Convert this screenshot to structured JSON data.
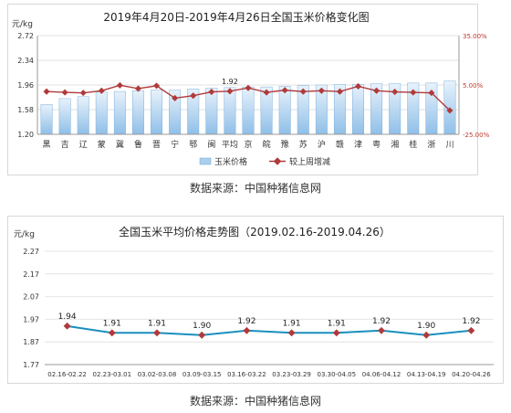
{
  "chart_data": [
    {
      "type": "bar",
      "title": "2019年4月20日-2019年4月26日全国玉米价格变化图",
      "ylabel": "元/kg",
      "categories": [
        "黑",
        "吉",
        "辽",
        "蒙",
        "冀",
        "鲁",
        "晋",
        "宁",
        "鄂",
        "闽",
        "平均",
        "京",
        "皖",
        "豫",
        "苏",
        "沪",
        "赣",
        "津",
        "粤",
        "湘",
        "桂",
        "浙",
        "川"
      ],
      "ylim": [
        1.2,
        2.72
      ],
      "yticks": [
        "1.20",
        "1.58",
        "1.96",
        "2.34",
        "2.72"
      ],
      "y2ticks": [
        "35.00%",
        "5.00%",
        "-25.00%"
      ],
      "y2lim": [
        -25,
        35
      ],
      "series": [
        {
          "name": "玉米价格",
          "values": [
            1.66,
            1.75,
            1.78,
            1.85,
            1.86,
            1.87,
            1.88,
            1.88,
            1.9,
            1.91,
            1.92,
            1.93,
            1.93,
            1.94,
            1.95,
            1.96,
            1.97,
            1.97,
            1.98,
            1.98,
            1.99,
            1.99,
            2.02
          ]
        },
        {
          "name": "较上周增减",
          "axis": "right",
          "values": [
            1.0,
            0.5,
            0.2,
            1.5,
            4.8,
            2.8,
            4.5,
            -3.0,
            -1.5,
            0.8,
            1.2,
            3.2,
            0.5,
            1.8,
            1.0,
            1.5,
            1.0,
            4.2,
            1.5,
            0.8,
            0.5,
            0.2,
            -10.5
          ]
        }
      ],
      "data_labels": [
        {
          "category": "平均",
          "text": "1.92"
        }
      ],
      "legend": [
        "玉米价格",
        "较上周增减"
      ],
      "legend_position": "bottom",
      "colors": {
        "bar": "#a9cfee",
        "line": "#b03a3a"
      }
    },
    {
      "type": "line",
      "title": "全国玉米平均价格走势图（2019.02.16-2019.04.26）",
      "ylabel": "元/kg",
      "categories": [
        "02.16-02.22",
        "02.23-03.01",
        "03.02-03.08",
        "03.09-03.15",
        "03.16-03.22",
        "03.23-03.29",
        "03.30-04.05",
        "04.06-04.12",
        "04.13-04.19",
        "04.20-04.26"
      ],
      "ylim": [
        1.77,
        2.27
      ],
      "yticks": [
        "1.77",
        "1.87",
        "1.97",
        "2.07",
        "2.17",
        "2.27"
      ],
      "series": [
        {
          "name": "",
          "values": [
            1.94,
            1.91,
            1.91,
            1.9,
            1.92,
            1.91,
            1.91,
            1.92,
            1.9,
            1.92
          ],
          "labels": [
            "1.94",
            "1.91",
            "1.91",
            "1.90",
            "1.92",
            "1.91",
            "1.91",
            "1.92",
            "1.90",
            "1.92"
          ]
        }
      ],
      "colors": {
        "line": "#1a8fbf",
        "marker": "#b03a3a"
      }
    }
  ],
  "captions": [
    "数据来源：中国种猪信息网",
    "数据来源：中国种猪信息网"
  ]
}
